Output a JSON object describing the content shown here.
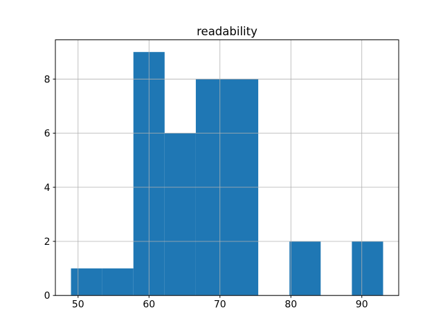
{
  "window": {
    "background": "#ffffff"
  },
  "chart_data": {
    "type": "bar",
    "subtype": "histogram",
    "title": "readability",
    "xlabel": "",
    "ylabel": "",
    "bin_edges": [
      49.0,
      53.4,
      57.8,
      62.2,
      66.6,
      71.0,
      75.4,
      79.8,
      84.2,
      88.6,
      93.0
    ],
    "counts": [
      1,
      1,
      9,
      6,
      8,
      8,
      0,
      2,
      0,
      2
    ],
    "x_ticks": [
      50,
      60,
      70,
      80,
      90
    ],
    "y_ticks": [
      0,
      2,
      4,
      6,
      8
    ],
    "xlim": [
      46.8,
      95.2
    ],
    "ylim": [
      0,
      9.45
    ],
    "grid": true,
    "grid_on_top": true,
    "legend": false,
    "colors": {
      "bar": "#1f77b4",
      "grid": "#b0b0b0",
      "axes": "#000000",
      "text": "#000000",
      "background": "#ffffff"
    }
  }
}
